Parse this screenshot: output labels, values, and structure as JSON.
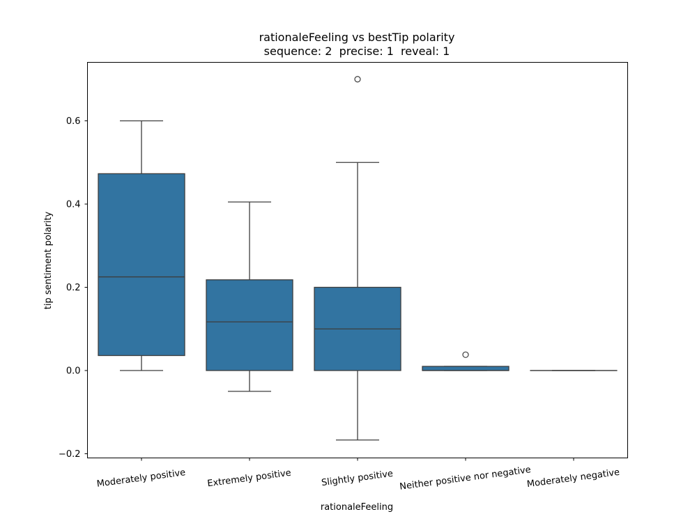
{
  "chart_data": {
    "type": "box",
    "title": "rationaleFeeling vs bestTip polarity",
    "subtitle": "sequence: 2  precise: 1  reveal: 1",
    "xlabel": "rationaleFeeling",
    "ylabel": "tip sentiment polarity",
    "ylim": [
      -0.21,
      0.735
    ],
    "yticks": [
      -0.2,
      0.0,
      0.2,
      0.4,
      0.6
    ],
    "ytick_labels": [
      "−0.2",
      "0.0",
      "0.2",
      "0.4",
      "0.6"
    ],
    "categories": [
      "Moderately positive",
      "Extremely positive",
      "Slightly positive",
      "Neither positive nor negative",
      "Moderately negative"
    ],
    "boxes": [
      {
        "whisker_low": 0.0,
        "q1": 0.036,
        "median": 0.225,
        "q3": 0.473,
        "whisker_high": 0.6,
        "outliers": []
      },
      {
        "whisker_low": -0.05,
        "q1": 0.0,
        "median": 0.117,
        "q3": 0.218,
        "whisker_high": 0.405,
        "outliers": []
      },
      {
        "whisker_low": -0.167,
        "q1": 0.0,
        "median": 0.1,
        "q3": 0.2,
        "whisker_high": 0.5,
        "outliers": [
          0.7
        ]
      },
      {
        "whisker_low": 0.0,
        "q1": 0.0,
        "median": 0.0,
        "q3": 0.01,
        "whisker_high": 0.01,
        "outliers": [
          0.038
        ]
      },
      {
        "whisker_low": 0.0,
        "q1": 0.0,
        "median": 0.0,
        "q3": 0.0,
        "whisker_high": 0.0,
        "outliers": []
      }
    ],
    "box_color": "#3274a1",
    "line_color": "#3d3d3d",
    "grid": false,
    "legend": "none"
  }
}
